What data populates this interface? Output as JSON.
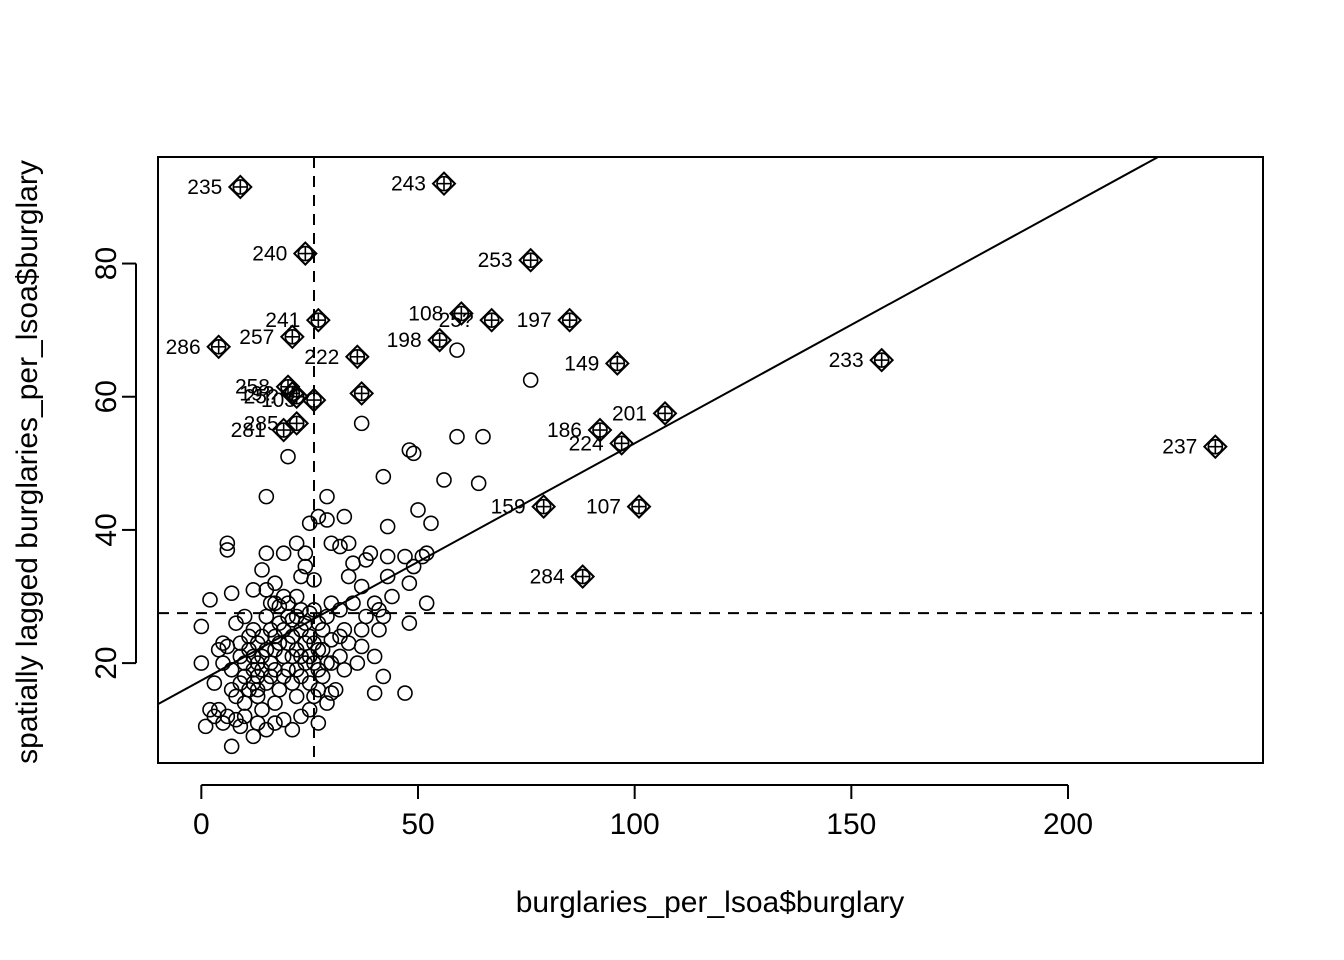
{
  "chart_data": {
    "type": "scatter",
    "title": "",
    "xlabel": "burglaries_per_lsoa$burglary",
    "ylabel": "spatially lagged burglaries_per_lsoa$burglary",
    "xlim": [
      -10,
      245
    ],
    "ylim": [
      5,
      96
    ],
    "x_ticks": [
      0,
      50,
      100,
      150,
      200
    ],
    "y_ticks": [
      20,
      40,
      60,
      80
    ],
    "x_tick_labels": [
      "0",
      "50",
      "100",
      "150",
      "200"
    ],
    "y_tick_labels": [
      "20",
      "40",
      "60",
      "80"
    ],
    "grid": false,
    "legend": "none",
    "mean_x": 26,
    "mean_y": 27.5,
    "regression_line": {
      "intercept": 17.4,
      "slope": 0.356
    },
    "influential_points": [
      {
        "id": "235",
        "x": 9,
        "y": 91.5
      },
      {
        "id": "243",
        "x": 56,
        "y": 92
      },
      {
        "id": "240",
        "x": 24,
        "y": 81.5
      },
      {
        "id": "253",
        "x": 76,
        "y": 80.5
      },
      {
        "id": "241",
        "x": 27,
        "y": 71.5
      },
      {
        "id": "108",
        "x": 60,
        "y": 72.5
      },
      {
        "id": "25?",
        "x": 67,
        "y": 71.5
      },
      {
        "id": "197",
        "x": 85,
        "y": 71.5
      },
      {
        "id": "286",
        "x": 4,
        "y": 67.5
      },
      {
        "id": "257",
        "x": 21,
        "y": 69
      },
      {
        "id": "198",
        "x": 55,
        "y": 68.5
      },
      {
        "id": "222",
        "x": 36,
        "y": 66
      },
      {
        "id": "233",
        "x": 157,
        "y": 65.5
      },
      {
        "id": "149",
        "x": 96,
        "y": 65
      },
      {
        "id": "258",
        "x": 20,
        "y": 61.5
      },
      {
        "id": "19?",
        "x": 21,
        "y": 60.5
      },
      {
        "id": "25?",
        "x": 22,
        "y": 60
      },
      {
        "id": "103",
        "x": 26,
        "y": 59.5
      },
      {
        "id": "",
        "x": 37,
        "y": 60.5
      },
      {
        "id": "285",
        "x": 22,
        "y": 56
      },
      {
        "id": "281",
        "x": 19,
        "y": 55
      },
      {
        "id": "186",
        "x": 92,
        "y": 55
      },
      {
        "id": "201",
        "x": 107,
        "y": 57.5
      },
      {
        "id": "224",
        "x": 97,
        "y": 53
      },
      {
        "id": "237",
        "x": 234,
        "y": 52.5
      },
      {
        "id": "159",
        "x": 79,
        "y": 43.5
      },
      {
        "id": "107",
        "x": 101,
        "y": 43.5
      },
      {
        "id": "284",
        "x": 88,
        "y": 33
      }
    ],
    "points": [
      [
        1,
        10.5
      ],
      [
        2,
        13
      ],
      [
        3,
        12
      ],
      [
        4,
        13
      ],
      [
        5,
        11
      ],
      [
        6,
        12
      ],
      [
        7,
        7.5
      ],
      [
        8,
        11.5
      ],
      [
        9,
        10.5
      ],
      [
        10,
        12
      ],
      [
        12,
        9
      ],
      [
        13,
        11
      ],
      [
        15,
        10
      ],
      [
        17,
        11
      ],
      [
        19,
        11.5
      ],
      [
        21,
        10
      ],
      [
        23,
        12
      ],
      [
        25,
        13
      ],
      [
        27,
        11
      ],
      [
        29,
        14
      ],
      [
        0,
        20
      ],
      [
        0,
        25.5
      ],
      [
        2,
        29.5
      ],
      [
        3,
        17
      ],
      [
        4,
        22
      ],
      [
        5,
        23
      ],
      [
        5,
        20
      ],
      [
        6,
        22.5
      ],
      [
        6,
        38
      ],
      [
        6,
        37
      ],
      [
        7,
        30.5
      ],
      [
        7,
        19
      ],
      [
        7,
        16
      ],
      [
        8,
        15
      ],
      [
        8,
        26
      ],
      [
        9,
        17
      ],
      [
        9,
        21
      ],
      [
        9,
        23
      ],
      [
        10,
        27
      ],
      [
        10,
        14
      ],
      [
        10,
        18
      ],
      [
        10,
        20
      ],
      [
        11,
        16
      ],
      [
        11,
        22
      ],
      [
        11,
        24
      ],
      [
        12,
        31
      ],
      [
        12,
        19
      ],
      [
        12,
        21
      ],
      [
        12,
        25
      ],
      [
        12,
        17
      ],
      [
        13,
        16
      ],
      [
        13,
        18
      ],
      [
        13,
        20
      ],
      [
        13,
        23
      ],
      [
        13,
        15
      ],
      [
        14,
        34
      ],
      [
        14,
        19
      ],
      [
        14,
        21
      ],
      [
        14,
        24
      ],
      [
        14,
        13
      ],
      [
        15,
        36.5
      ],
      [
        15,
        45
      ],
      [
        15,
        31
      ],
      [
        15,
        27
      ],
      [
        15,
        22
      ],
      [
        15,
        17
      ],
      [
        16,
        29
      ],
      [
        16,
        20
      ],
      [
        16,
        25
      ],
      [
        16,
        18
      ],
      [
        17,
        32
      ],
      [
        17,
        29
      ],
      [
        17,
        24
      ],
      [
        17,
        22
      ],
      [
        17,
        19
      ],
      [
        17,
        14
      ],
      [
        18,
        28.5
      ],
      [
        18,
        26
      ],
      [
        18,
        23
      ],
      [
        18,
        16
      ],
      [
        19,
        36.5
      ],
      [
        19,
        30
      ],
      [
        19,
        21
      ],
      [
        19,
        18
      ],
      [
        19,
        25
      ],
      [
        20,
        51
      ],
      [
        20,
        29
      ],
      [
        20,
        27
      ],
      [
        20,
        23
      ],
      [
        20,
        19
      ],
      [
        21,
        26.5
      ],
      [
        21,
        24
      ],
      [
        21,
        21
      ],
      [
        21,
        17
      ],
      [
        22,
        38
      ],
      [
        22,
        30
      ],
      [
        22,
        27
      ],
      [
        22,
        22
      ],
      [
        22,
        19
      ],
      [
        22,
        15
      ],
      [
        23,
        33
      ],
      [
        23,
        28
      ],
      [
        23,
        25
      ],
      [
        23,
        21
      ],
      [
        23,
        18
      ],
      [
        24,
        36.5
      ],
      [
        24,
        34.5
      ],
      [
        24,
        26
      ],
      [
        24,
        23
      ],
      [
        24,
        20
      ],
      [
        25,
        41
      ],
      [
        25,
        27.5
      ],
      [
        25,
        24
      ],
      [
        25,
        21
      ],
      [
        25,
        17
      ],
      [
        26,
        32.5
      ],
      [
        26,
        28
      ],
      [
        26,
        23
      ],
      [
        26,
        20
      ],
      [
        26,
        15
      ],
      [
        27,
        42
      ],
      [
        27,
        26
      ],
      [
        27,
        22
      ],
      [
        27,
        19
      ],
      [
        27,
        16
      ],
      [
        28,
        22
      ],
      [
        28,
        25
      ],
      [
        28,
        18
      ],
      [
        29,
        45
      ],
      [
        29,
        41.5
      ],
      [
        29,
        27
      ],
      [
        29,
        20
      ],
      [
        30,
        38
      ],
      [
        30,
        29
      ],
      [
        30,
        23.5
      ],
      [
        30,
        20
      ],
      [
        30,
        15.5
      ],
      [
        31,
        16
      ],
      [
        32,
        37.5
      ],
      [
        32,
        28
      ],
      [
        32,
        24
      ],
      [
        32,
        21
      ],
      [
        33,
        42
      ],
      [
        33,
        25
      ],
      [
        33,
        19
      ],
      [
        34,
        38
      ],
      [
        34,
        33
      ],
      [
        34,
        23
      ],
      [
        35,
        35
      ],
      [
        35,
        29
      ],
      [
        36,
        20
      ],
      [
        37,
        56
      ],
      [
        37,
        31.5
      ],
      [
        37,
        25
      ],
      [
        37,
        22.5
      ],
      [
        38,
        35.5
      ],
      [
        38,
        27
      ],
      [
        39,
        36.5
      ],
      [
        40,
        29
      ],
      [
        40,
        21
      ],
      [
        40,
        15.5
      ],
      [
        41,
        25
      ],
      [
        41,
        28
      ],
      [
        42,
        48
      ],
      [
        42,
        27
      ],
      [
        42,
        18
      ],
      [
        43,
        40.5
      ],
      [
        43,
        36
      ],
      [
        43,
        33
      ],
      [
        44,
        30
      ],
      [
        47,
        36
      ],
      [
        47,
        15.5
      ],
      [
        48,
        52
      ],
      [
        48,
        32
      ],
      [
        48,
        26
      ],
      [
        49,
        51.5
      ],
      [
        49,
        34.5
      ],
      [
        50,
        43
      ],
      [
        51,
        36
      ],
      [
        52,
        36.5
      ],
      [
        52,
        29
      ],
      [
        53,
        41
      ],
      [
        56,
        47.5
      ],
      [
        59,
        67
      ],
      [
        59,
        54
      ],
      [
        64,
        47
      ],
      [
        65,
        54
      ],
      [
        76,
        62.5
      ]
    ]
  }
}
